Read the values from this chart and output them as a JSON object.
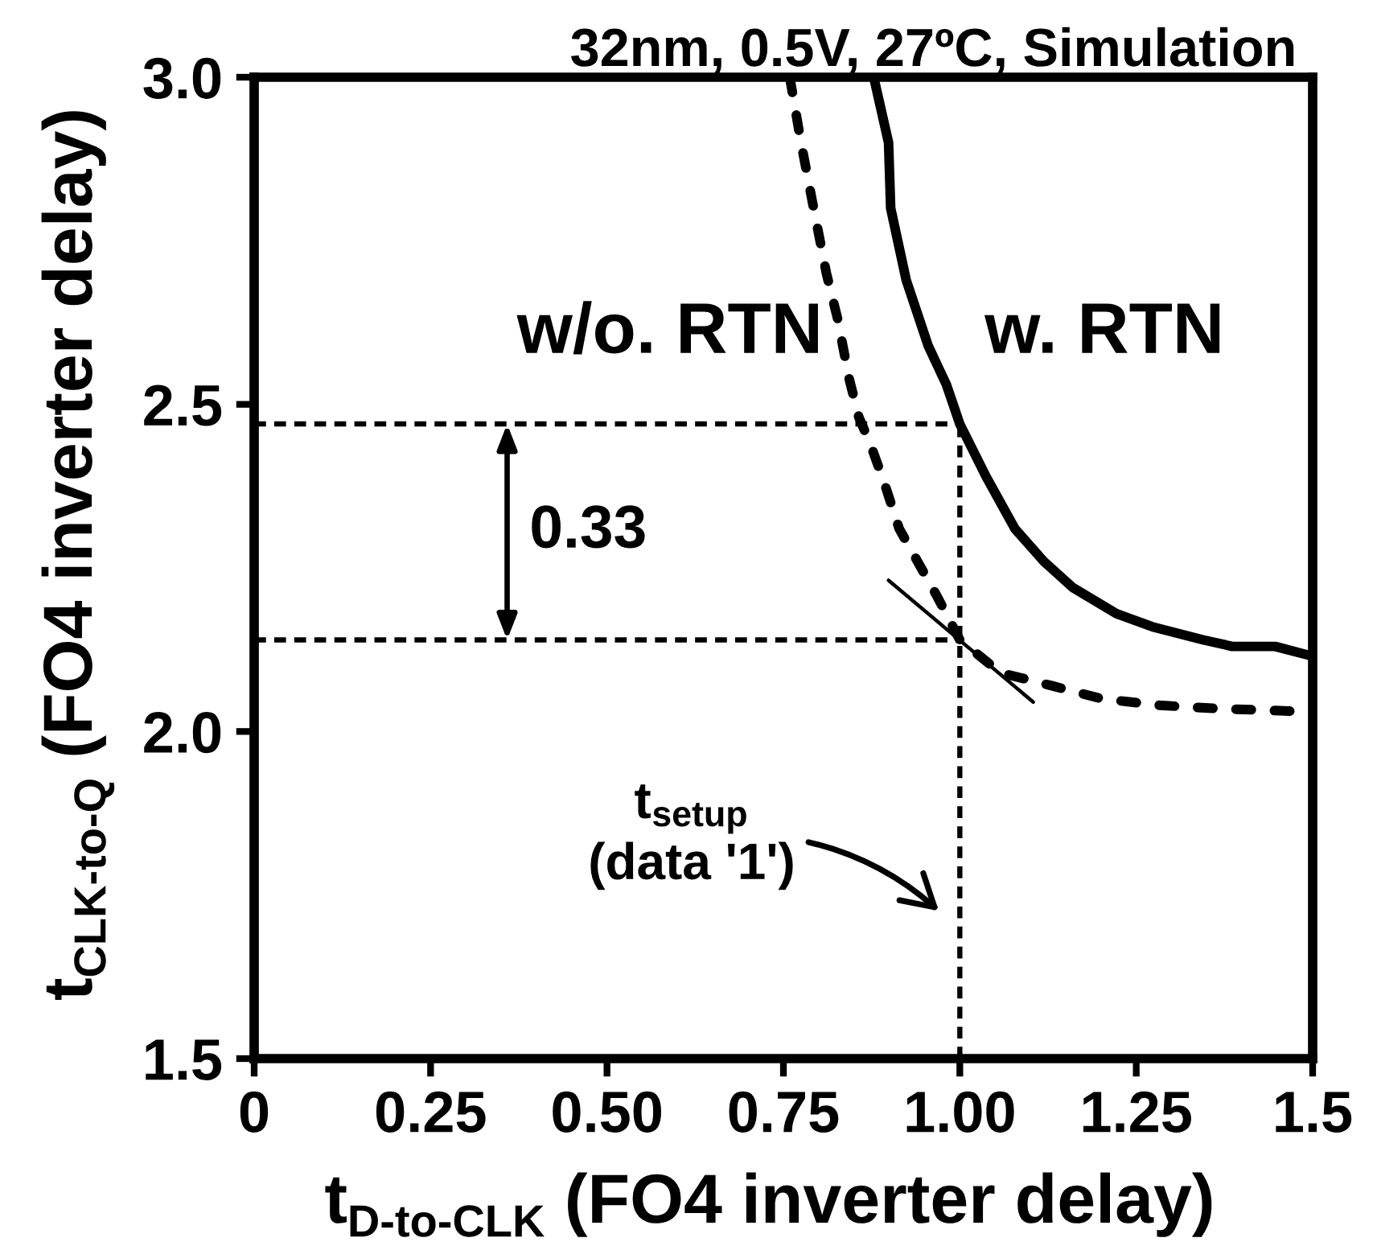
{
  "chart_data": {
    "type": "line",
    "title": "32nm, 0.5V, 27ºC, Simulation",
    "xlabel": "t$_{D-to-CLK}$ (FO4 inverter delay)",
    "ylabel": "t$_{CLK-to-Q}$ (FO4 inverter delay)",
    "xlim": [
      0,
      1.5
    ],
    "xticks": [
      0,
      0.25,
      {
        "value": 0.5,
        "label": "0.50"
      },
      0.75,
      {
        "value": 1,
        "label": "1.00"
      },
      1.25,
      1.5
    ],
    "ylim": [
      1.5,
      3.0
    ],
    "yticks": [
      1.5,
      {
        "value": 2,
        "label": "2.0"
      },
      2.5,
      {
        "value": 3,
        "label": "3.0"
      }
    ],
    "series": [
      {
        "name": "w/o. RTN",
        "color": "#000000",
        "line_style": "dashed",
        "x": [
          0.759,
          0.775,
          0.791,
          0.811,
          0.827,
          0.843,
          0.857,
          0.873,
          0.893,
          0.914,
          0.94,
          0.966,
          1.0,
          1.057,
          1.13,
          1.201,
          1.283,
          1.365,
          1.5
        ],
        "values": [
          3.0,
          2.9,
          2.81,
          2.7,
          2.63,
          2.54,
          2.48,
          2.44,
          2.38,
          2.31,
          2.26,
          2.21,
          2.14,
          2.09,
          2.07,
          2.05,
          2.04,
          2.035,
          2.03
        ]
      },
      {
        "name": "w. RTN",
        "color": "#000000",
        "line_style": "solid",
        "x": [
          0.878,
          0.899,
          0.902,
          0.924,
          0.955,
          0.981,
          1.0,
          1.037,
          1.078,
          1.119,
          1.16,
          1.222,
          1.273,
          1.345,
          1.386,
          1.447,
          1.5
        ],
        "values": [
          3.0,
          2.9,
          2.8,
          2.69,
          2.59,
          2.53,
          2.47,
          2.39,
          2.31,
          2.26,
          2.22,
          2.18,
          2.16,
          2.14,
          2.13,
          2.13,
          2.115
        ]
      },
      {
        "type": "line",
        "color": "#000000",
        "line_style": "solid",
        "x": [
          0.899,
          1.104
        ],
        "values": [
          2.231,
          2.045
        ]
      }
    ],
    "ref_lines": [
      {
        "axis": "y",
        "value": 2.47,
        "color": "#000000",
        "line_style": "dotted"
      },
      {
        "axis": "y",
        "value": 2.14,
        "color": "#000000",
        "line_style": "dotted"
      },
      {
        "axis": "x",
        "value": 1.0,
        "color": "#000000",
        "line_style": "dotted"
      }
    ],
    "annotations": [
      "0.33",
      "t$_{setup}$\n(data '1')"
    ]
  }
}
